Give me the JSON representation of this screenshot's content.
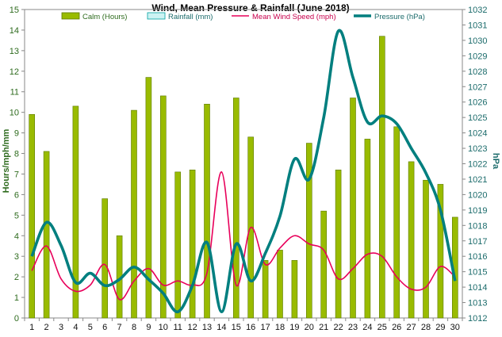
{
  "chart_data": {
    "type": "bar",
    "title": "Wind, Mean Pressure & Rainfall (June 2018)",
    "xlabel": "",
    "ylabel": "Hours/mph/mm",
    "y2label": "hPa",
    "ylim": [
      0,
      15
    ],
    "y2lim": [
      1012,
      1032
    ],
    "yticks": [
      "0",
      "1",
      "2",
      "3",
      "4",
      "5",
      "6",
      "7",
      "8",
      "9",
      "10",
      "11",
      "12",
      "13",
      "14",
      "15"
    ],
    "y2ticks": [
      "1012",
      "1013",
      "1014",
      "1015",
      "1016",
      "1017",
      "1018",
      "1019",
      "1020",
      "1021",
      "1022",
      "1023",
      "1024",
      "1025",
      "1026",
      "1027",
      "1028",
      "1029",
      "1030",
      "1031",
      "1032"
    ],
    "categories": [
      "1",
      "2",
      "3",
      "4",
      "5",
      "6",
      "7",
      "8",
      "9",
      "10",
      "11",
      "12",
      "13",
      "14",
      "15",
      "16",
      "17",
      "18",
      "19",
      "20",
      "21",
      "22",
      "23",
      "24",
      "25",
      "26",
      "27",
      "28",
      "29",
      "30"
    ],
    "grid": false,
    "legend_placement": "top",
    "series": [
      {
        "name": "Calm (Hours)",
        "type": "bar",
        "axis": "left",
        "color": "#99bb00",
        "values": [
          9.9,
          8.1,
          null,
          10.3,
          null,
          5.8,
          4.0,
          10.1,
          11.7,
          10.8,
          7.1,
          7.2,
          10.4,
          null,
          10.7,
          8.8,
          2.8,
          3.3,
          2.8,
          8.5,
          5.2,
          7.2,
          10.7,
          8.7,
          13.7,
          9.3,
          7.6,
          6.7,
          6.5,
          4.9
        ]
      },
      {
        "name": "Rainfall (mm)",
        "type": "bar",
        "axis": "left",
        "color": "#ccf3f3",
        "values": [
          0,
          0,
          0,
          0,
          0,
          0,
          0,
          0,
          0,
          0,
          0,
          0,
          0,
          0,
          0,
          0,
          0,
          0,
          0,
          0,
          0,
          0,
          0,
          0,
          0,
          0,
          0,
          0,
          0,
          0
        ]
      },
      {
        "name": "Mean Wind Speed (mph)",
        "type": "line",
        "axis": "left",
        "color": "#e8005a",
        "values": [
          2.3,
          3.5,
          1.9,
          1.3,
          1.6,
          2.6,
          0.9,
          1.8,
          2.4,
          1.6,
          1.8,
          1.6,
          2.2,
          7.1,
          1.6,
          4.4,
          2.6,
          3.4,
          4.0,
          3.6,
          3.3,
          1.9,
          2.4,
          3.1,
          3.0,
          2.0,
          1.4,
          1.5,
          2.5,
          2.0
        ]
      },
      {
        "name": "Pressure (hPa)",
        "type": "line",
        "axis": "right",
        "color": "#007f7f",
        "values": [
          1016.0,
          1018.2,
          1016.7,
          1014.3,
          1014.9,
          1014.1,
          1014.5,
          1015.3,
          1014.5,
          1013.6,
          1012.4,
          1014.1,
          1016.9,
          1012.4,
          1016.8,
          1014.4,
          1016.2,
          1018.6,
          1022.3,
          1021.0,
          1025.0,
          1030.6,
          1027.6,
          1024.7,
          1025.1,
          1024.6,
          1023.0,
          1021.4,
          1019.0,
          1014.4
        ]
      }
    ]
  }
}
